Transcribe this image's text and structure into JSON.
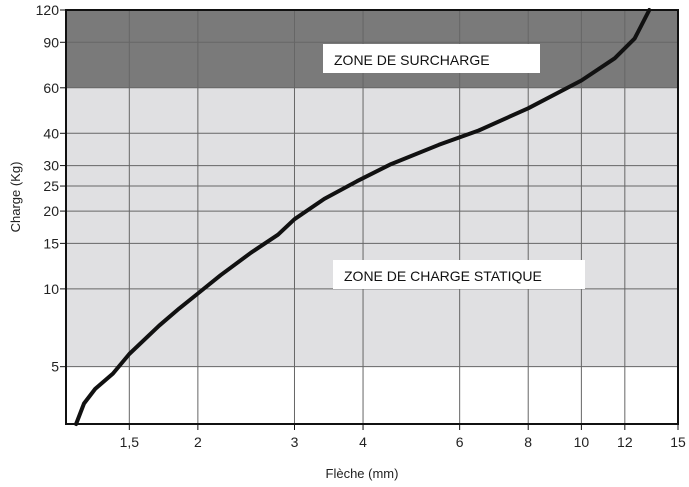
{
  "chart_data": {
    "type": "line",
    "xlabel": "Flèche (mm)",
    "ylabel": "Charge (Kg)",
    "x_scale": "log",
    "y_scale": "log",
    "xlim": [
      1.15,
      15
    ],
    "ylim": [
      3,
      120
    ],
    "x_ticks": [
      {
        "value": 1.5,
        "label": "1,5"
      },
      {
        "value": 2,
        "label": "2"
      },
      {
        "value": 3,
        "label": "3"
      },
      {
        "value": 4,
        "label": "4"
      },
      {
        "value": 6,
        "label": "6"
      },
      {
        "value": 8,
        "label": "8"
      },
      {
        "value": 10,
        "label": "10"
      },
      {
        "value": 12,
        "label": "12"
      },
      {
        "value": 15,
        "label": "15"
      }
    ],
    "y_ticks": [
      {
        "value": 5,
        "label": "5"
      },
      {
        "value": 10,
        "label": "10"
      },
      {
        "value": 15,
        "label": "15"
      },
      {
        "value": 20,
        "label": "20"
      },
      {
        "value": 25,
        "label": "25"
      },
      {
        "value": 30,
        "label": "30"
      },
      {
        "value": 40,
        "label": "40"
      },
      {
        "value": 60,
        "label": "60"
      },
      {
        "value": 90,
        "label": "90"
      },
      {
        "value": 120,
        "label": "120"
      }
    ],
    "grid": true,
    "zones": [
      {
        "label": "ZONE DE SURCHARGE",
        "y_from": 60,
        "y_to": 120,
        "color": "#7a7a7a"
      },
      {
        "label": "ZONE DE CHARGE STATIQUE",
        "y_from": 5,
        "y_to": 60,
        "color": "#e0e0e2"
      }
    ],
    "series": [
      {
        "color": "#111111",
        "points": [
          [
            1.2,
            3
          ],
          [
            1.24,
            3.6
          ],
          [
            1.3,
            4.1
          ],
          [
            1.4,
            4.7
          ],
          [
            1.5,
            5.6
          ],
          [
            1.7,
            7.2
          ],
          [
            1.85,
            8.4
          ],
          [
            2.0,
            9.6
          ],
          [
            2.2,
            11.3
          ],
          [
            2.5,
            13.8
          ],
          [
            2.8,
            16.2
          ],
          [
            3.0,
            18.6
          ],
          [
            3.4,
            22.3
          ],
          [
            3.9,
            26.1
          ],
          [
            4.5,
            30.4
          ],
          [
            5.5,
            36.1
          ],
          [
            6.5,
            41
          ],
          [
            8.0,
            50
          ],
          [
            10.0,
            64
          ],
          [
            11.5,
            78
          ],
          [
            12.5,
            93
          ],
          [
            13.3,
            120
          ]
        ]
      }
    ]
  }
}
